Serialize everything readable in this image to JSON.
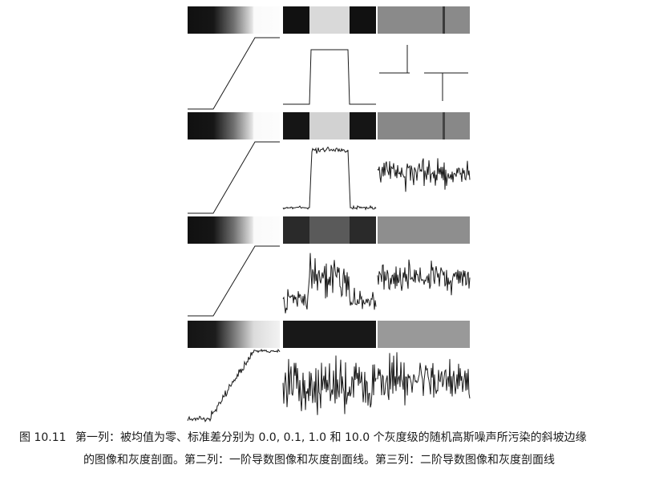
{
  "caption": {
    "label": "图 10.11",
    "line1": "第一列：被均值为零、标准差分别为 0.0, 0.1, 1.0 和 10.0 个灰度级的随机高斯噪声所污染的斜坡边缘",
    "line2": "的图像和灰度剖面。第二列：一阶导数图像和灰度剖面线。第三列：二阶导数图像和灰度剖面线"
  },
  "figure": {
    "columns": [
      "ramp-edge",
      "first-derivative",
      "second-derivative"
    ],
    "noise_std_levels": [
      0.0,
      0.1,
      1.0,
      10.0
    ]
  }
}
